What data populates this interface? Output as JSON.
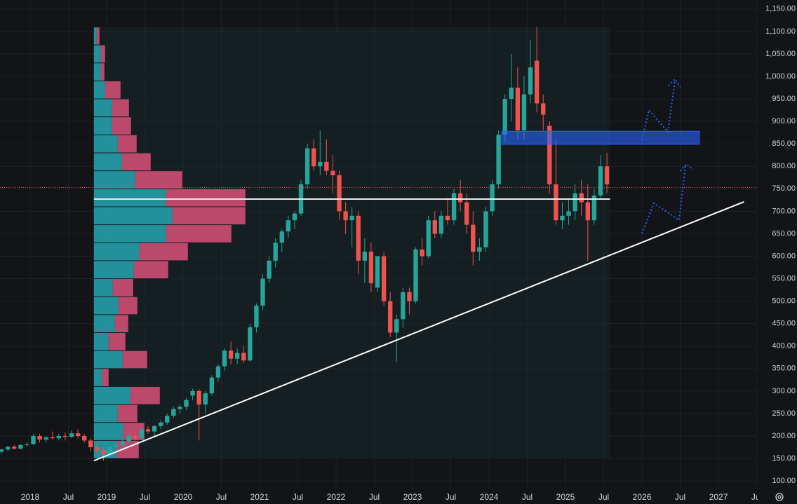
{
  "chart_data": {
    "type": "candlestick",
    "x": [
      "2017-08",
      "2017-09",
      "2017-10",
      "2017-11",
      "2017-12",
      "2018-01",
      "2018-02",
      "2018-03",
      "2018-04",
      "2018-05",
      "2018-06",
      "2018-07",
      "2018-08",
      "2018-09",
      "2018-10",
      "2018-11",
      "2018-12",
      "2019-01",
      "2019-02",
      "2019-03",
      "2019-04",
      "2019-05",
      "2019-06",
      "2019-07",
      "2019-08",
      "2019-09",
      "2019-10",
      "2019-11",
      "2019-12",
      "2020-01",
      "2020-02",
      "2020-03",
      "2020-04",
      "2020-05",
      "2020-06",
      "2020-07",
      "2020-08",
      "2020-09",
      "2020-10",
      "2020-11",
      "2020-12",
      "2021-01",
      "2021-02",
      "2021-03",
      "2021-04",
      "2021-05",
      "2021-06",
      "2021-07",
      "2021-08",
      "2021-09",
      "2021-10",
      "2021-11",
      "2021-12",
      "2022-01",
      "2022-02",
      "2022-03",
      "2022-04",
      "2022-05",
      "2022-06",
      "2022-07",
      "2022-08",
      "2022-09",
      "2022-10",
      "2022-11",
      "2022-12",
      "2023-01",
      "2023-02",
      "2023-03",
      "2023-04",
      "2023-05",
      "2023-06",
      "2023-07",
      "2023-08",
      "2023-09",
      "2023-10",
      "2023-11",
      "2023-12",
      "2024-01",
      "2024-02",
      "2024-03",
      "2024-04",
      "2024-05",
      "2024-06",
      "2024-07",
      "2024-08",
      "2024-09",
      "2024-10",
      "2024-11",
      "2024-12",
      "2025-01",
      "2025-02",
      "2025-03",
      "2025-04",
      "2025-05",
      "2025-06",
      "2025-07"
    ],
    "open": [
      165,
      170,
      176,
      172,
      180,
      182,
      200,
      192,
      197,
      195,
      200,
      198,
      206,
      200,
      190,
      175,
      168,
      160,
      175,
      180,
      188,
      200,
      195,
      215,
      210,
      222,
      230,
      245,
      260,
      265,
      290,
      300,
      270,
      295,
      330,
      355,
      390,
      372,
      385,
      368,
      442,
      490,
      550,
      590,
      630,
      655,
      680,
      695,
      760,
      840,
      800,
      810,
      790,
      780,
      700,
      680,
      690,
      590,
      610,
      530,
      600,
      500,
      430,
      460,
      520,
      500,
      615,
      600,
      680,
      650,
      690,
      680,
      740,
      720,
      670,
      610,
      620,
      700,
      760,
      870,
      950,
      975,
      880,
      960,
      1035,
      940,
      890,
      760,
      680,
      690,
      700,
      740,
      720,
      680,
      735,
      800
    ],
    "high": [
      172,
      178,
      180,
      182,
      186,
      205,
      205,
      200,
      210,
      205,
      208,
      212,
      215,
      205,
      195,
      185,
      175,
      178,
      185,
      192,
      205,
      212,
      218,
      222,
      225,
      235,
      250,
      265,
      270,
      285,
      305,
      305,
      300,
      335,
      360,
      395,
      410,
      395,
      400,
      450,
      495,
      560,
      600,
      640,
      660,
      690,
      700,
      770,
      850,
      860,
      880,
      860,
      825,
      790,
      720,
      710,
      700,
      640,
      630,
      600,
      610,
      520,
      470,
      530,
      530,
      620,
      640,
      690,
      700,
      700,
      730,
      750,
      770,
      740,
      700,
      640,
      710,
      770,
      880,
      960,
      1050,
      1020,
      1000,
      1080,
      1110,
      960,
      900,
      860,
      720,
      730,
      760,
      770,
      760,
      750,
      825,
      830
    ],
    "low": [
      160,
      166,
      170,
      170,
      176,
      180,
      185,
      185,
      192,
      190,
      190,
      195,
      195,
      185,
      165,
      160,
      145,
      155,
      168,
      172,
      185,
      190,
      192,
      205,
      200,
      215,
      225,
      240,
      250,
      258,
      280,
      190,
      250,
      290,
      320,
      345,
      360,
      360,
      362,
      365,
      430,
      480,
      540,
      575,
      610,
      640,
      660,
      690,
      750,
      790,
      780,
      780,
      740,
      680,
      650,
      620,
      560,
      540,
      520,
      520,
      490,
      420,
      365,
      440,
      470,
      495,
      580,
      595,
      640,
      640,
      670,
      670,
      700,
      650,
      580,
      590,
      610,
      690,
      750,
      855,
      900,
      860,
      860,
      940,
      920,
      880,
      740,
      670,
      660,
      670,
      680,
      690,
      590,
      670,
      730,
      740
    ],
    "close": [
      170,
      176,
      172,
      180,
      182,
      200,
      192,
      197,
      195,
      200,
      198,
      206,
      200,
      190,
      175,
      168,
      160,
      175,
      180,
      188,
      200,
      195,
      215,
      210,
      222,
      230,
      245,
      260,
      265,
      280,
      300,
      270,
      295,
      330,
      355,
      390,
      372,
      385,
      368,
      442,
      490,
      550,
      590,
      630,
      655,
      680,
      695,
      760,
      840,
      800,
      810,
      790,
      780,
      700,
      680,
      690,
      590,
      610,
      540,
      600,
      500,
      430,
      460,
      520,
      500,
      615,
      600,
      680,
      650,
      690,
      680,
      740,
      720,
      670,
      610,
      620,
      700,
      760,
      870,
      950,
      975,
      880,
      960,
      1020,
      940,
      915,
      760,
      680,
      690,
      700,
      740,
      720,
      680,
      735,
      800,
      760
    ],
    "up_color": "#26a69a",
    "down_color": "#ef5350",
    "xlim": [
      2017.606,
      2027.495
    ],
    "xticks": [
      2018,
      {
        "value": 2018.5,
        "label": "Jul"
      },
      2019,
      {
        "value": 2019.5,
        "label": "Jul"
      },
      2020,
      {
        "value": 2020.5,
        "label": "Jul"
      },
      2021,
      {
        "value": 2021.5,
        "label": "Jul"
      },
      2022,
      {
        "value": 2022.5,
        "label": "Jul"
      },
      2023,
      {
        "value": 2023.5,
        "label": "Jul"
      },
      2024,
      {
        "value": 2024.5,
        "label": "Jul"
      },
      2025,
      {
        "value": 2025.5,
        "label": "Jul"
      },
      2026,
      {
        "value": 2026.5,
        "label": "Jul"
      },
      2027,
      {
        "value": 2027.5,
        "label": "Jul"
      }
    ],
    "ylim": [
      83,
      1170
    ],
    "yticks": [
      {
        "value": 100,
        "label": "100.00"
      },
      {
        "value": 150,
        "label": "150.00"
      },
      {
        "value": 200,
        "label": "200.00"
      },
      {
        "value": 250,
        "label": "250.00"
      },
      {
        "value": 300,
        "label": "300.00"
      },
      {
        "value": 350,
        "label": "350.00"
      },
      {
        "value": 400,
        "label": "400.00"
      },
      {
        "value": 450,
        "label": "450.00"
      },
      {
        "value": 500,
        "label": "500.00"
      },
      {
        "value": 550,
        "label": "550.00"
      },
      {
        "value": 600,
        "label": "600.00"
      },
      {
        "value": 650,
        "label": "650.00"
      },
      {
        "value": 700,
        "label": "700.00"
      },
      {
        "value": 750,
        "label": "750.00"
      },
      {
        "value": 800,
        "label": "800.00"
      },
      {
        "value": 850,
        "label": "850.00"
      },
      {
        "value": 900,
        "label": "900.00"
      },
      {
        "value": 950,
        "label": "950.00"
      },
      {
        "value": 1000,
        "label": "1,000.00"
      },
      {
        "value": 1050,
        "label": "1,050.00"
      },
      {
        "value": 1100,
        "label": "1,100.00"
      },
      {
        "value": 1150,
        "label": "1,150.00"
      }
    ],
    "grid": true,
    "volume_profile": {
      "start": "2018-11",
      "end": "2025-08",
      "bins": [
        150,
        190,
        230,
        270,
        310,
        350,
        390,
        430,
        470,
        510,
        550,
        590,
        630,
        670,
        710,
        750,
        790,
        830,
        870,
        910,
        950,
        990,
        1030,
        1070,
        1110
      ],
      "up_volume": [
        33,
        42,
        34,
        52,
        12,
        41,
        21,
        30,
        35,
        27,
        57,
        65,
        103,
        112,
        103,
        59,
        40,
        34,
        26,
        26,
        16,
        10,
        10,
        4
      ],
      "down_volume": [
        31,
        30,
        28,
        42,
        9,
        35,
        24,
        19,
        27,
        29,
        49,
        69,
        93,
        104,
        113,
        67,
        41,
        27,
        27,
        24,
        22,
        5,
        6,
        4
      ],
      "up_color": "#26a6b3",
      "down_color": "#d9507a"
    },
    "support_line": {
      "value": 727,
      "start": "2018-11",
      "end": "2025-08"
    },
    "resistance_zone": {
      "low": 849,
      "high": 878,
      "start": "2024-03",
      "end": "2026-10",
      "color": "#2962ff"
    },
    "trend_line": {
      "x": [
        "2018-11",
        "2027-05"
      ],
      "y": [
        145,
        721
      ]
    },
    "last_price": 753
  }
}
